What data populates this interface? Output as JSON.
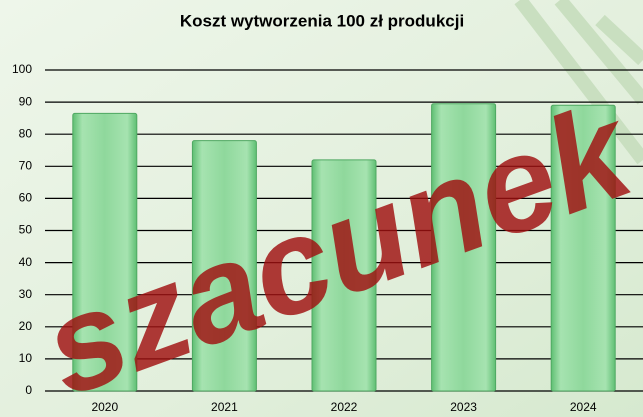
{
  "chart_data": {
    "type": "bar",
    "title": "Koszt wytworzenia 100 zł produkcji",
    "categories": [
      "2020",
      "2021",
      "2022",
      "2023",
      "2024"
    ],
    "values": [
      86.5,
      78,
      72,
      89.5,
      89
    ],
    "color": "#8fd89c",
    "ylim": [
      0,
      100
    ],
    "yticks": [
      0,
      10,
      20,
      30,
      40,
      50,
      60,
      70,
      80,
      90,
      100
    ],
    "grid": true,
    "watermark": "szacunek"
  }
}
